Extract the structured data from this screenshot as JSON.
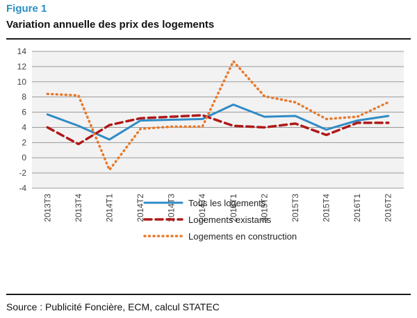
{
  "figure_label": "Figure 1",
  "title": "Variation annuelle des prix des logements",
  "source": "Source : Publicité Foncière, ECM, calcul STATEC",
  "colors": {
    "accent": "#2b8fc4",
    "plot_bg": "#f2f2f2",
    "gridline": "#9a9a9a"
  },
  "chart_data": {
    "type": "line",
    "categories": [
      "2013T3",
      "2013T4",
      "2014T1",
      "2014T2",
      "2014T3",
      "2014T4",
      "2015T1",
      "2015T2",
      "2015T3",
      "2015T4",
      "2016T1",
      "2016T2"
    ],
    "ylim": [
      -4,
      14
    ],
    "yticks": [
      -4,
      -2,
      0,
      2,
      4,
      6,
      8,
      10,
      12,
      14
    ],
    "grid": true,
    "legend_position": "bottom",
    "series": [
      {
        "name": "Tous les logements",
        "color": "#2e8bc6",
        "style": "solid",
        "values": [
          5.7,
          4.2,
          2.4,
          4.9,
          5.0,
          5.1,
          7.0,
          5.4,
          5.5,
          3.7,
          4.9,
          5.5
        ]
      },
      {
        "name": "Logements existants",
        "color": "#b01818",
        "style": "dashed",
        "values": [
          4.0,
          1.8,
          4.3,
          5.2,
          5.4,
          5.6,
          4.2,
          4.0,
          4.5,
          3.0,
          4.6,
          4.6
        ]
      },
      {
        "name": "Logements en construction",
        "color": "#e8792a",
        "style": "dotted",
        "values": [
          8.4,
          8.2,
          -1.6,
          3.8,
          4.1,
          4.1,
          12.7,
          8.1,
          7.3,
          5.1,
          5.4,
          7.3
        ]
      }
    ]
  }
}
